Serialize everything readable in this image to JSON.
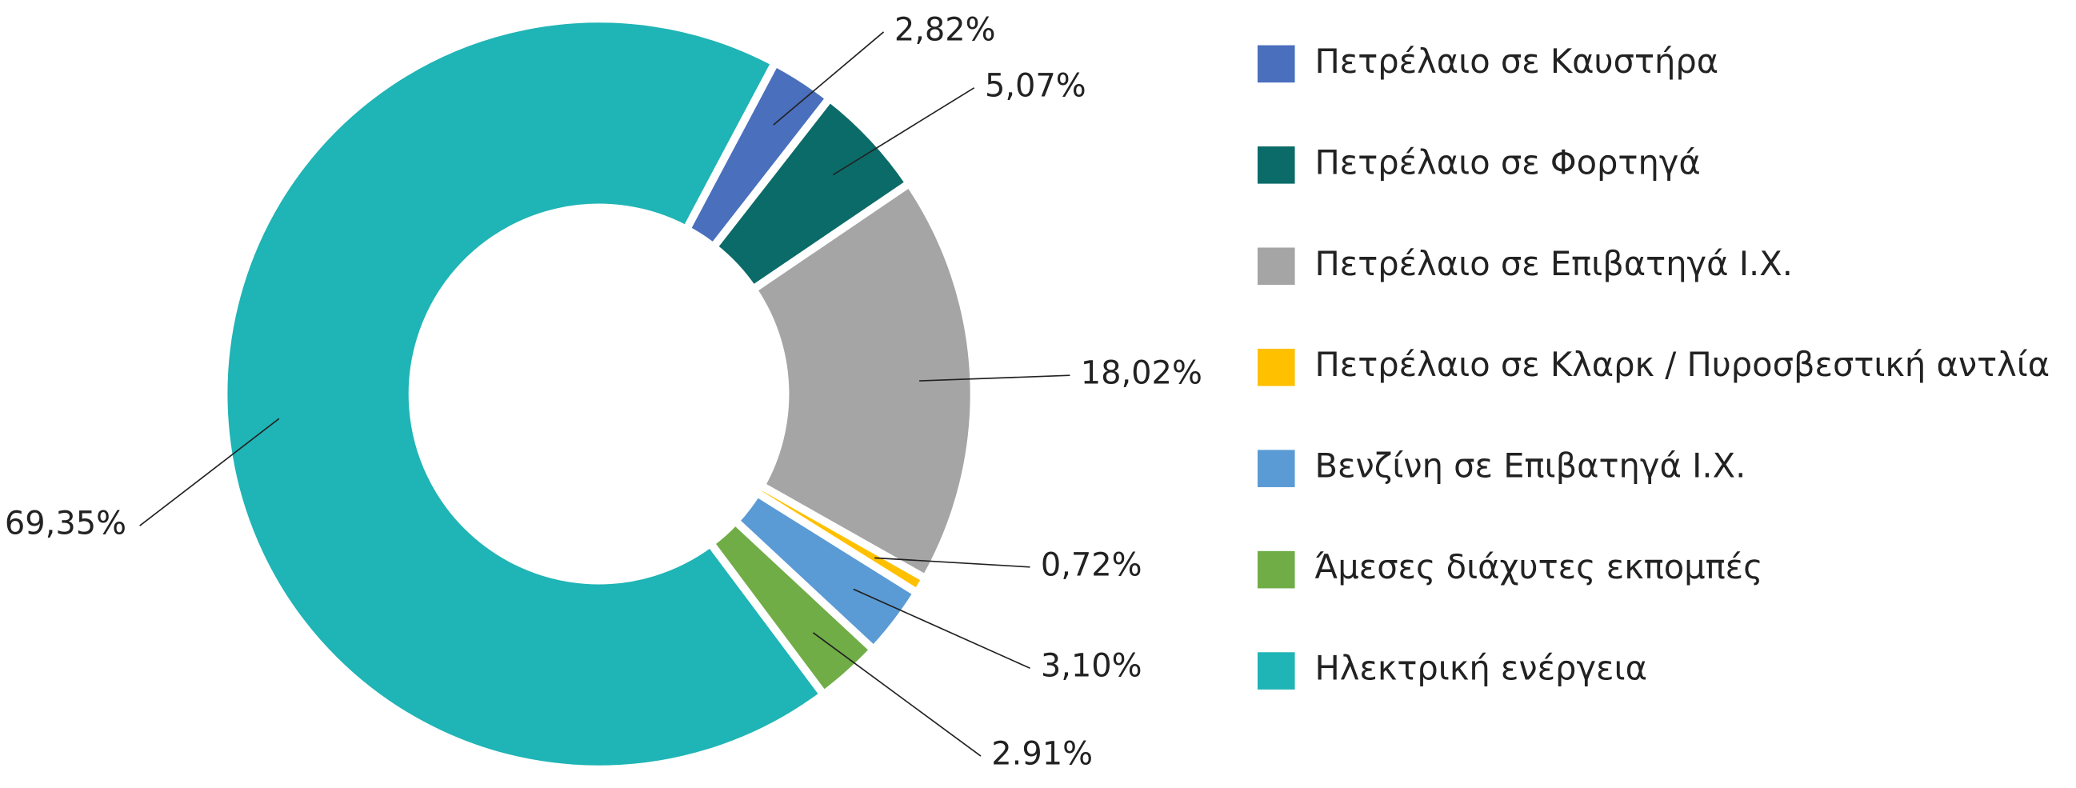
{
  "chart_data": {
    "type": "donut",
    "categories": [
      "Πετρέλαιο σε Καυστήρα",
      "Πετρέλαιο σε Φορτηγά",
      "Πετρέλαιο σε Επιβατηγά Ι.Χ.",
      "Πετρέλαιο σε Κλαρκ / Πυροσβεστική αντλία",
      "Βενζίνη σε Επιβατηγά Ι.Χ.",
      "Άμεσες διάχυτες εκπομπές",
      "Ηλεκτρική ενέργεια"
    ],
    "values": [
      2.82,
      5.07,
      18.02,
      0.72,
      3.1,
      2.91,
      69.35
    ],
    "value_labels": [
      "2,82%",
      "5,07%",
      "18,02%",
      "0,72%",
      "3,10%",
      "2.91%",
      "69,35%"
    ],
    "colors": [
      "#4a6fbd",
      "#0b6b69",
      "#a5a5a5",
      "#ffc000",
      "#5b9bd5",
      "#70ad47",
      "#1fb4b5"
    ],
    "legend": "right"
  }
}
